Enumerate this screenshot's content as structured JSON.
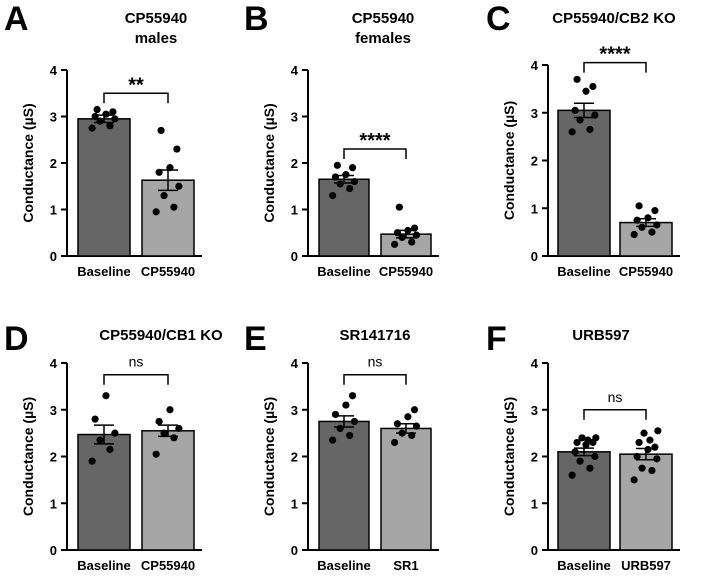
{
  "chart_data": [
    {
      "panel": "A",
      "type": "bar",
      "title": [
        "CP55940",
        "males"
      ],
      "ylabel": "Conductance (µS)",
      "ylim": [
        0,
        4
      ],
      "yticks": [
        "0",
        "1",
        "2",
        "3",
        "4"
      ],
      "categories": [
        "Baseline",
        "CP55940"
      ],
      "values": [
        2.95,
        1.63
      ],
      "errors": [
        0.08,
        0.22
      ],
      "points": [
        [
          2.75,
          2.8,
          2.9,
          2.95,
          3.0,
          3.05,
          3.1,
          3.15
        ],
        [
          0.95,
          1.05,
          1.3,
          1.5,
          1.8,
          1.9,
          2.3,
          2.7
        ]
      ],
      "bar_colors": [
        "#666666",
        "#a6a6a6"
      ],
      "significance": "**"
    },
    {
      "panel": "B",
      "type": "bar",
      "title": [
        "CP55940",
        "females"
      ],
      "ylabel": "Conductance (µS)",
      "ylim": [
        0,
        4
      ],
      "yticks": [
        "0",
        "1",
        "2",
        "3",
        "4"
      ],
      "categories": [
        "Baseline",
        "CP55940"
      ],
      "values": [
        1.65,
        0.47
      ],
      "errors": [
        0.08,
        0.08
      ],
      "points": [
        [
          1.3,
          1.45,
          1.55,
          1.6,
          1.7,
          1.75,
          1.9,
          1.95
        ],
        [
          0.25,
          0.3,
          0.4,
          0.45,
          0.5,
          0.55,
          0.6,
          1.05
        ]
      ],
      "bar_colors": [
        "#666666",
        "#a6a6a6"
      ],
      "significance": "****"
    },
    {
      "panel": "C",
      "type": "bar",
      "title": [
        "CP55940/CB2 KO"
      ],
      "ylabel": "Conductance (µS)",
      "ylim": [
        0,
        4
      ],
      "yticks": [
        "0",
        "1",
        "2",
        "3",
        "4"
      ],
      "categories": [
        "Baseline",
        "CP55940"
      ],
      "values": [
        3.05,
        0.7
      ],
      "errors": [
        0.15,
        0.08
      ],
      "points": [
        [
          2.6,
          2.65,
          2.85,
          2.95,
          3.05,
          3.45,
          3.55,
          3.7
        ],
        [
          0.45,
          0.5,
          0.6,
          0.65,
          0.75,
          0.8,
          0.95,
          1.05
        ]
      ],
      "bar_colors": [
        "#666666",
        "#a6a6a6"
      ],
      "significance": "****"
    },
    {
      "panel": "D",
      "type": "bar",
      "title": [
        "CP55940/CB1 KO"
      ],
      "ylabel": "Conductance (µS)",
      "ylim": [
        0,
        4
      ],
      "yticks": [
        "0",
        "1",
        "2",
        "3",
        "4"
      ],
      "categories": [
        "Baseline",
        "CP55940"
      ],
      "values": [
        2.47,
        2.55
      ],
      "errors": [
        0.2,
        0.12
      ],
      "points": [
        [
          1.9,
          2.15,
          2.35,
          2.5,
          2.8,
          3.3
        ],
        [
          2.05,
          2.4,
          2.5,
          2.6,
          2.75,
          3.0
        ]
      ],
      "bar_colors": [
        "#666666",
        "#a6a6a6"
      ],
      "significance": "ns"
    },
    {
      "panel": "E",
      "type": "bar",
      "title": [
        "SR141716"
      ],
      "ylabel": "Conductance (µS)",
      "ylim": [
        0,
        4
      ],
      "yticks": [
        "0",
        "1",
        "2",
        "3",
        "4"
      ],
      "categories": [
        "Baseline",
        "SR1"
      ],
      "values": [
        2.75,
        2.6
      ],
      "errors": [
        0.12,
        0.1
      ],
      "points": [
        [
          2.35,
          2.45,
          2.6,
          2.75,
          2.9,
          3.1,
          3.3
        ],
        [
          2.3,
          2.45,
          2.5,
          2.65,
          2.7,
          2.85,
          3.0
        ]
      ],
      "bar_colors": [
        "#666666",
        "#a6a6a6"
      ],
      "significance": "ns"
    },
    {
      "panel": "F",
      "type": "bar",
      "title": [
        "URB597"
      ],
      "ylabel": "Conductance (µS)",
      "ylim": [
        0,
        4
      ],
      "yticks": [
        "0",
        "1",
        "2",
        "3",
        "4"
      ],
      "categories": [
        "Baseline",
        "URB597"
      ],
      "values": [
        2.1,
        2.05
      ],
      "errors": [
        0.08,
        0.12
      ],
      "points": [
        [
          1.6,
          1.75,
          1.9,
          2.0,
          2.1,
          2.25,
          2.3,
          2.3,
          2.35,
          2.4,
          2.4
        ],
        [
          1.5,
          1.7,
          1.75,
          1.95,
          2.0,
          2.15,
          2.2,
          2.3,
          2.35,
          2.5,
          2.55
        ]
      ],
      "bar_colors": [
        "#666666",
        "#a6a6a6"
      ],
      "significance": "ns"
    }
  ]
}
